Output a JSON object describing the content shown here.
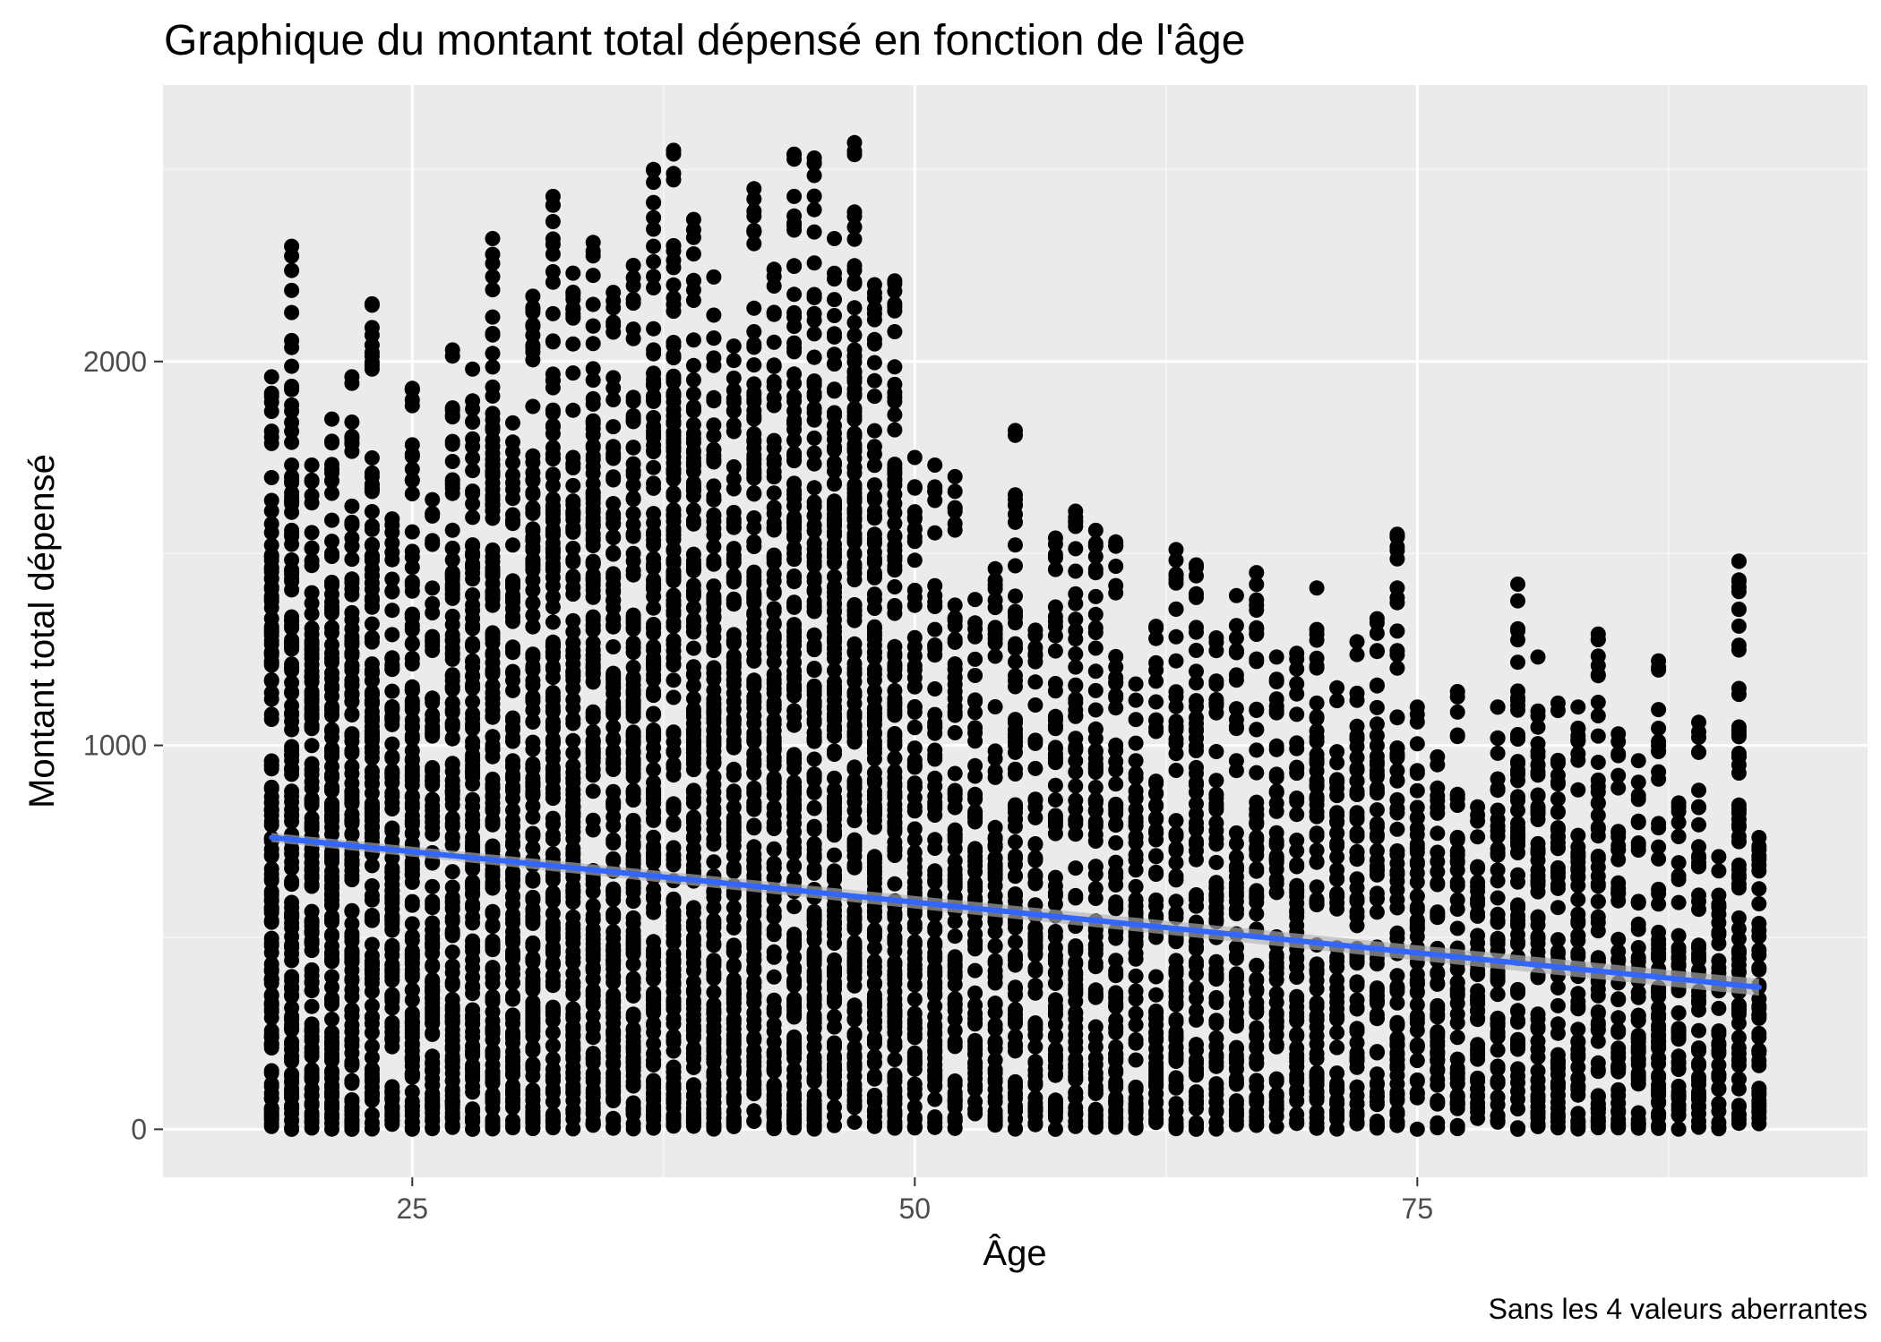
{
  "chart_data": {
    "type": "scatter",
    "title": "Graphique du montant total dépensé en fonction de l'âge",
    "xlabel": "Âge",
    "ylabel": "Montant total dépensé",
    "caption": "Sans les 4 valeurs aberrantes",
    "xlim": [
      12.6,
      97.4
    ],
    "ylim": [
      -125,
      2720
    ],
    "x_ticks": [
      25,
      50,
      75
    ],
    "y_ticks": [
      0,
      1000,
      2000
    ],
    "x_minor_ticks": [
      12.5,
      37.5,
      62.5,
      87.5
    ],
    "y_minor_ticks": [
      500,
      1500,
      2500
    ],
    "x_tick_labels": [
      "25",
      "50",
      "75"
    ],
    "y_tick_labels": [
      "0",
      "1000",
      "2000"
    ],
    "age_range": [
      18,
      92
    ],
    "point_color": "#000000",
    "trend": {
      "method": "linear",
      "color": "#3366ff",
      "ribbon_color": "#b3b3b3",
      "points": [
        [
          18,
          760
        ],
        [
          92,
          370
        ]
      ],
      "ci_halfwidth_at_ends": [
        12,
        22
      ]
    },
    "upper_envelope": [
      [
        18,
        1960
      ],
      [
        19,
        2300
      ],
      [
        20,
        1730
      ],
      [
        21,
        1850
      ],
      [
        22,
        1960
      ],
      [
        23,
        2150
      ],
      [
        24,
        1590
      ],
      [
        25,
        1930
      ],
      [
        26,
        1640
      ],
      [
        27,
        2030
      ],
      [
        28,
        1980
      ],
      [
        29,
        2320
      ],
      [
        30,
        1840
      ],
      [
        31,
        2170
      ],
      [
        32,
        2430
      ],
      [
        33,
        2230
      ],
      [
        34,
        2310
      ],
      [
        35,
        2180
      ],
      [
        36,
        2250
      ],
      [
        37,
        2500
      ],
      [
        38,
        2550
      ],
      [
        39,
        2370
      ],
      [
        40,
        2220
      ],
      [
        41,
        2040
      ],
      [
        42,
        2450
      ],
      [
        43,
        2240
      ],
      [
        44,
        2540
      ],
      [
        45,
        2530
      ],
      [
        46,
        2320
      ],
      [
        47,
        2570
      ],
      [
        48,
        2200
      ],
      [
        49,
        2210
      ],
      [
        50,
        1750
      ],
      [
        51,
        1730
      ],
      [
        52,
        1700
      ],
      [
        53,
        1380
      ],
      [
        54,
        1460
      ],
      [
        55,
        1820
      ],
      [
        56,
        1300
      ],
      [
        57,
        1540
      ],
      [
        58,
        1610
      ],
      [
        59,
        1560
      ],
      [
        60,
        1530
      ],
      [
        61,
        1160
      ],
      [
        62,
        1310
      ],
      [
        63,
        1510
      ],
      [
        64,
        1470
      ],
      [
        65,
        1280
      ],
      [
        66,
        1390
      ],
      [
        67,
        1450
      ],
      [
        68,
        1230
      ],
      [
        69,
        1240
      ],
      [
        70,
        1410
      ],
      [
        71,
        1150
      ],
      [
        72,
        1270
      ],
      [
        73,
        1330
      ],
      [
        74,
        1550
      ],
      [
        75,
        1100
      ],
      [
        76,
        970
      ],
      [
        77,
        1140
      ],
      [
        78,
        840
      ],
      [
        79,
        1100
      ],
      [
        80,
        1420
      ],
      [
        81,
        1230
      ],
      [
        82,
        1110
      ],
      [
        83,
        1100
      ],
      [
        84,
        1290
      ],
      [
        85,
        1030
      ],
      [
        86,
        960
      ],
      [
        87,
        1220
      ],
      [
        88,
        850
      ],
      [
        89,
        1060
      ],
      [
        90,
        710
      ],
      [
        91,
        1480
      ],
      [
        92,
        760
      ]
    ]
  }
}
